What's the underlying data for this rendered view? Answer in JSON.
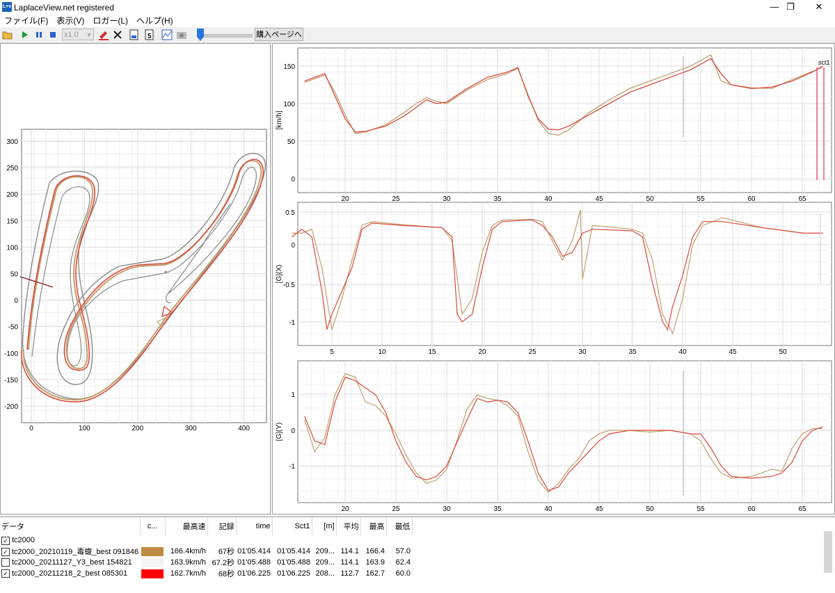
{
  "window": {
    "title": "LaplaceView.net registered",
    "icon_label": "L+v",
    "minimize_glyph": "—",
    "maximize_glyph": "❐",
    "close_glyph": "✕"
  },
  "menu": [
    "ファイル(F)",
    "表示(V)",
    "ロガー(L)",
    "ヘルプ(H)"
  ],
  "toolbar": {
    "speed_value": "x1.0",
    "buy_label": "購入ページへ",
    "icons": [
      "open-folder-icon",
      "play-icon",
      "pause-icon",
      "stop-icon",
      "speed-select",
      "erase-icon",
      "delete-icon",
      "export-icon",
      "number-5-icon",
      "chart-icon",
      "camera-icon",
      "position-slider"
    ]
  },
  "colors": {
    "brown": "#c0a070",
    "red": "#d94a3a",
    "grey_outline": "#8a8a8a",
    "marker": "#e8325a"
  },
  "track_map": {
    "y_ticks": [
      "300",
      "250",
      "200",
      "150",
      "100",
      "50",
      "0",
      "-50",
      "-100",
      "-150",
      "-200"
    ],
    "x_ticks": [
      "0",
      "100",
      "200",
      "300",
      "400"
    ]
  },
  "speed_chart": {
    "ylabel": "[km/h]",
    "y_ticks": [
      "150",
      "100",
      "50",
      "0"
    ],
    "x_ticks": [
      "20",
      "25",
      "30",
      "35",
      "40",
      "45",
      "50",
      "55",
      "60",
      "65"
    ],
    "marker_label": "sct1"
  },
  "gx_chart": {
    "ylabel": "[G](X)",
    "y_ticks": [
      "0.5",
      "0",
      "-0.5",
      "-1"
    ],
    "x_ticks": [
      "5",
      "10",
      "15",
      "20",
      "25",
      "30",
      "35",
      "40",
      "45",
      "50"
    ]
  },
  "gy_chart": {
    "ylabel": "[G](Y)",
    "y_ticks": [
      "1",
      "0",
      "-1"
    ],
    "x_ticks": [
      "20",
      "25",
      "30",
      "35",
      "40",
      "45",
      "50",
      "55",
      "60",
      "65"
    ]
  },
  "table": {
    "headers": [
      "データ",
      "c...",
      "最高速",
      "記録",
      "time",
      "Sct1",
      "[m]",
      "平均",
      "最高",
      "最低"
    ],
    "rows": [
      {
        "checked": true,
        "name": "tc2000",
        "color": "",
        "vmax": "",
        "record": "",
        "time": "",
        "sct1": "",
        "dist": "",
        "avg": "",
        "hi": "",
        "lo": ""
      },
      {
        "checked": true,
        "name": "tc2000_20210119_毒蝮_best 091846",
        "color": "#c08a40",
        "vmax": "166.4km/h",
        "record": "67秒",
        "time": "01'05.414",
        "sct1": "01'05.414",
        "dist": "209...",
        "avg": "114.1",
        "hi": "166.4",
        "lo": "57.0"
      },
      {
        "checked": false,
        "name": "tc2000_20211127_Y3_best 154821",
        "color": "#f7f3f3",
        "vmax": "163.9km/h",
        "record": "67.2秒",
        "time": "01'05.488",
        "sct1": "01'05.488",
        "dist": "209...",
        "avg": "114.1",
        "hi": "163.9",
        "lo": "62.4"
      },
      {
        "checked": true,
        "name": "tc2000_20211218_2_best 085301",
        "color": "#ff0000",
        "vmax": "162.7km/h",
        "record": "68秒",
        "time": "01'06.225",
        "sct1": "01'06.225",
        "dist": "208...",
        "avg": "112.7",
        "hi": "162.7",
        "lo": "60.0"
      }
    ]
  }
}
